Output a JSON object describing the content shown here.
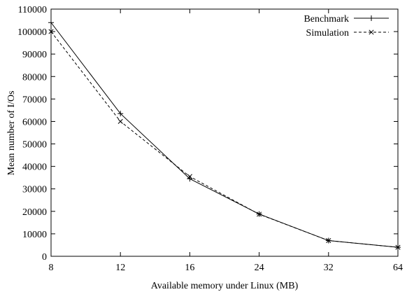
{
  "chart_data": {
    "type": "line",
    "title": "",
    "xlabel": "Available memory under Linux (MB)",
    "ylabel": "Mean number of I/Os",
    "categories": [
      "8",
      "12",
      "16",
      "24",
      "32",
      "64"
    ],
    "ylim": [
      0,
      110000
    ],
    "yticks": [
      "0",
      "10000",
      "20000",
      "30000",
      "40000",
      "50000",
      "60000",
      "70000",
      "80000",
      "90000",
      "100000",
      "110000"
    ],
    "grid": false,
    "legend_position": "top-right",
    "series": [
      {
        "name": "Benchmark",
        "line": "solid",
        "marker": "plus",
        "values": [
          104000,
          63500,
          34500,
          18800,
          7000,
          4000
        ]
      },
      {
        "name": "Simulation",
        "line": "dashed",
        "marker": "cross",
        "values": [
          100000,
          60000,
          35500,
          18700,
          7000,
          4000
        ]
      }
    ]
  }
}
